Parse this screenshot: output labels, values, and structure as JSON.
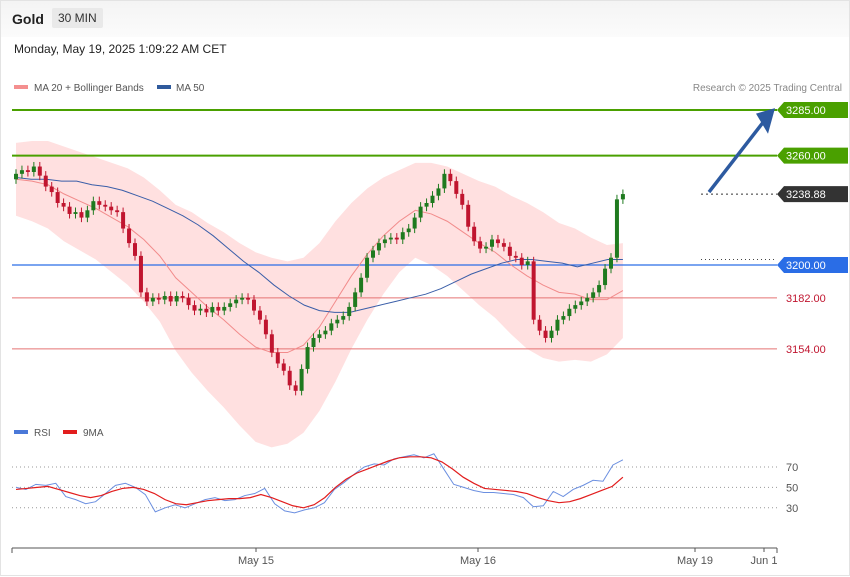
{
  "header": {
    "symbol": "Gold",
    "timeframe": "30 MIN"
  },
  "datetime": "Monday, May 19, 2025 1:09:22 AM CET",
  "legend": {
    "ma20_bb": "MA 20 + Bollinger Bands",
    "ma50": "MA 50",
    "credit": "Research © 2025 Trading Central",
    "rsi": "RSI",
    "rsi_ma": "9MA"
  },
  "colors": {
    "up": "#1f7a1f",
    "down": "#c0152f",
    "bb_fill": "#ffe0e0",
    "ma20": "#f28b8b",
    "ma50": "#3a5ea8",
    "resistance": "#4aa000",
    "support": "#e57373",
    "pivot": "#2a6de6",
    "current": "#333333",
    "arrow": "#2d5aa0",
    "rsi": "#6b8fe0",
    "rsi_ma": "#e21d1d"
  },
  "chart_data": [
    {
      "type": "candlestick",
      "ylim": [
        3120,
        3300
      ],
      "xticks": [
        "May 15",
        "May 16",
        "May 19",
        "Jun 1"
      ],
      "levels": [
        {
          "value": 3285.0,
          "label": "3285.00",
          "kind": "resistance"
        },
        {
          "value": 3260.0,
          "label": "3260.00",
          "kind": "resistance"
        },
        {
          "value": 3238.88,
          "label": "3238.88",
          "kind": "current"
        },
        {
          "value": 3200.0,
          "label": "3200.00",
          "kind": "pivot"
        },
        {
          "value": 3182.0,
          "label": "3182.00",
          "kind": "support"
        },
        {
          "value": 3154.0,
          "label": "3154.00",
          "kind": "support"
        }
      ],
      "series": [
        {
          "name": "Gold",
          "close": [
            3250,
            3252,
            3251,
            3254,
            3249,
            3243,
            3240,
            3234,
            3232,
            3228,
            3229,
            3226,
            3230,
            3235,
            3233,
            3232,
            3230,
            3229,
            3220,
            3212,
            3205,
            3185,
            3180,
            3182,
            3181,
            3183,
            3180,
            3183,
            3182,
            3178,
            3175,
            3176,
            3174,
            3177,
            3175,
            3177,
            3179,
            3181,
            3182,
            3181,
            3175,
            3170,
            3162,
            3152,
            3146,
            3142,
            3134,
            3131,
            3143,
            3155,
            3160,
            3162,
            3164,
            3168,
            3170,
            3172,
            3177,
            3185,
            3193,
            3204,
            3208,
            3212,
            3214,
            3215,
            3214,
            3218,
            3220,
            3226,
            3232,
            3234,
            3238,
            3242,
            3250,
            3246,
            3239,
            3233,
            3221,
            3213,
            3209,
            3210,
            3214,
            3212,
            3210,
            3205,
            3204,
            3200,
            3202,
            3170,
            3164,
            3160,
            3164,
            3170,
            3172,
            3176,
            3178,
            3180,
            3182,
            3185,
            3189,
            3198,
            3204,
            3236,
            3238.9
          ]
        },
        {
          "name": "MA 50",
          "values": [
            3248,
            3247,
            3247,
            3246,
            3246,
            3244,
            3243,
            3241,
            3238,
            3235,
            3231,
            3227,
            3222,
            3216,
            3209,
            3202,
            3196,
            3189,
            3183,
            3178,
            3175,
            3174,
            3174,
            3176,
            3178,
            3180,
            3182,
            3184,
            3187,
            3191,
            3195,
            3198,
            3201,
            3203,
            3203,
            3202,
            3201,
            3199,
            3201,
            3203,
            3203
          ]
        },
        {
          "name": "MA 20",
          "values": [
            3247,
            3246,
            3244,
            3239,
            3235,
            3231,
            3226,
            3221,
            3214,
            3205,
            3193,
            3185,
            3177,
            3170,
            3162,
            3155,
            3152,
            3152,
            3156,
            3166,
            3180,
            3194,
            3206,
            3216,
            3224,
            3230,
            3228,
            3224,
            3218,
            3212,
            3207,
            3200,
            3194,
            3189,
            3185,
            3184,
            3181,
            3181,
            3186
          ]
        },
        {
          "name": "RSI",
          "values": [
            50,
            48,
            53,
            52,
            54,
            41,
            38,
            34,
            36,
            44,
            52,
            54,
            50,
            43,
            26,
            30,
            33,
            30,
            34,
            38,
            40,
            37,
            38,
            42,
            44,
            49,
            34,
            27,
            25,
            28,
            30,
            35,
            48,
            55,
            63,
            70,
            73,
            72,
            78,
            80,
            82,
            79,
            83,
            68,
            53,
            50,
            47,
            45,
            45,
            44,
            43,
            40,
            31,
            32,
            46,
            41,
            48,
            52,
            57,
            56,
            72,
            77
          ]
        },
        {
          "name": "9MA",
          "values": [
            48,
            49,
            50,
            51,
            48,
            45,
            42,
            40,
            42,
            46,
            49,
            50,
            48,
            44,
            38,
            34,
            33,
            35,
            37,
            38,
            39,
            39,
            40,
            43,
            40,
            36,
            32,
            30,
            33,
            40,
            50,
            58,
            64,
            68,
            72,
            76,
            79,
            80,
            80,
            79,
            75,
            68,
            60,
            54,
            49,
            48,
            47,
            46,
            44,
            40,
            37,
            35,
            36,
            39,
            43,
            47,
            51,
            60
          ]
        }
      ]
    }
  ]
}
